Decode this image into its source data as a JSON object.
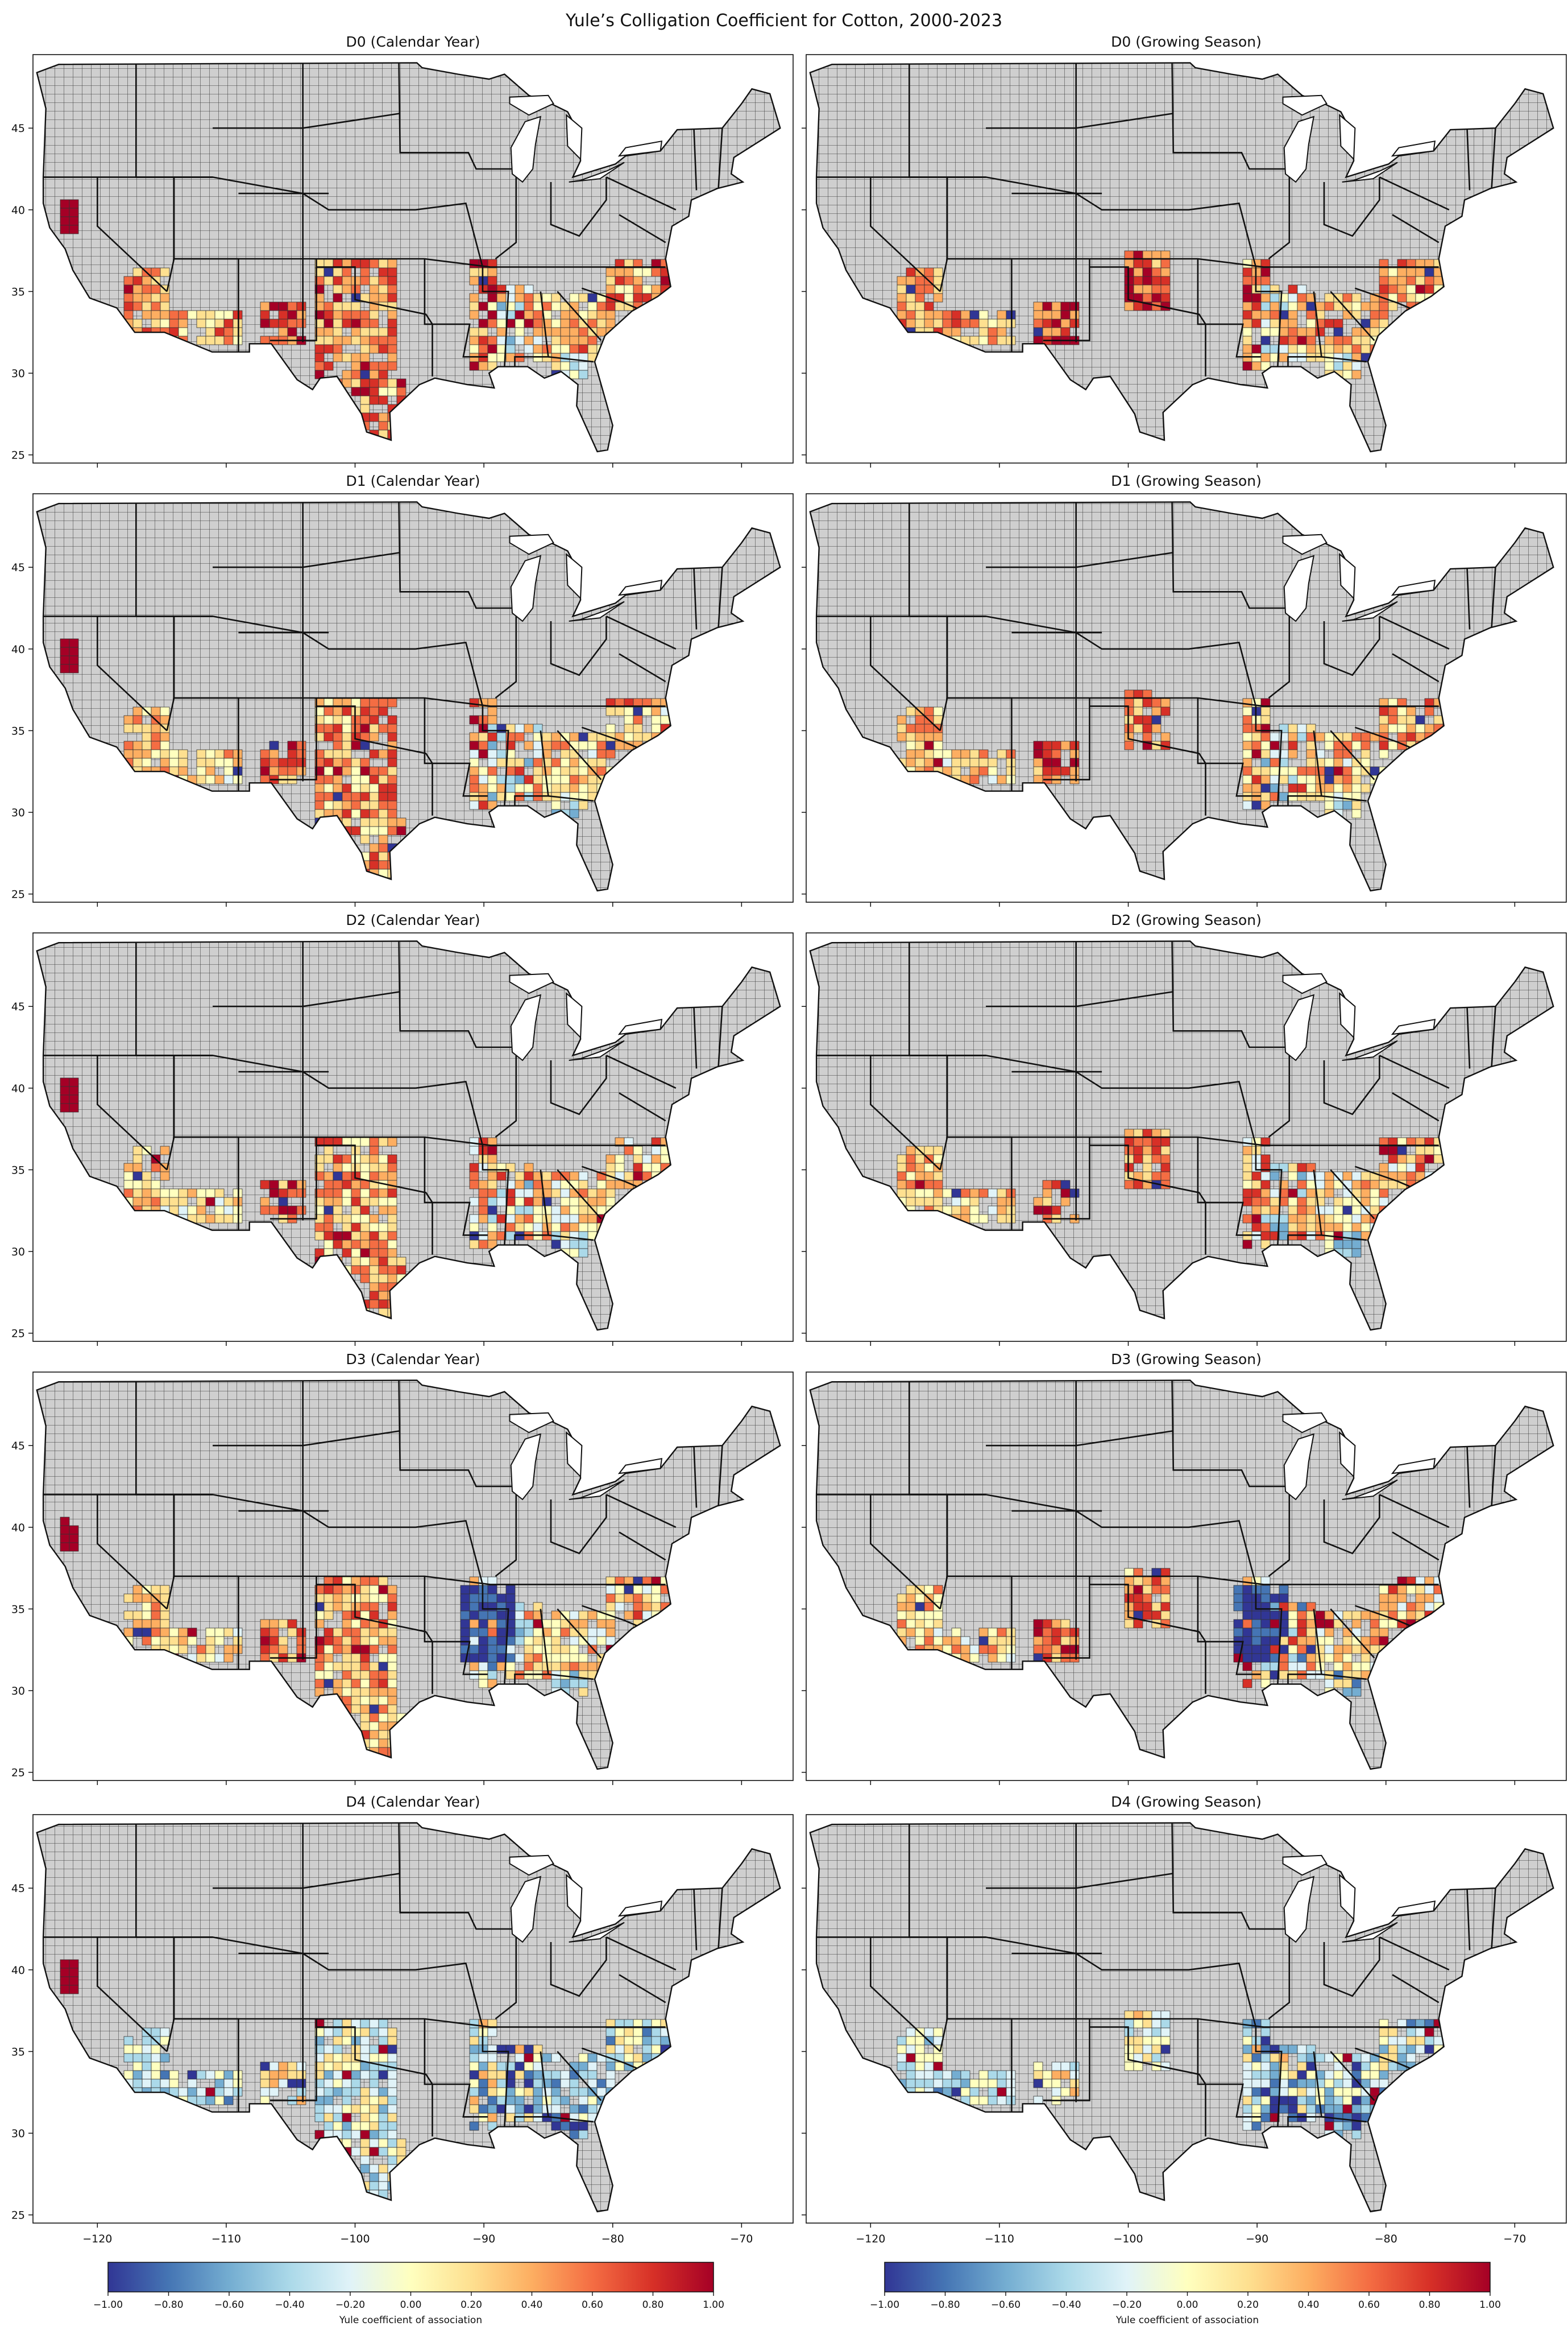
{
  "figure": {
    "title": "Yule’s Colligation Coefficient for Cotton, 2000-2023"
  },
  "chart_data": {
    "type": "map",
    "panels": [
      {
        "title": "D0 (Calendar Year)",
        "drought_level": "D0",
        "period": "Calendar Year"
      },
      {
        "title": "D0 (Growing Season)",
        "drought_level": "D0",
        "period": "Growing Season"
      },
      {
        "title": "D1 (Calendar Year)",
        "drought_level": "D1",
        "period": "Calendar Year"
      },
      {
        "title": "D1 (Growing Season)",
        "drought_level": "D1",
        "period": "Growing Season"
      },
      {
        "title": "D2 (Calendar Year)",
        "drought_level": "D2",
        "period": "Calendar Year"
      },
      {
        "title": "D2 (Growing Season)",
        "drought_level": "D2",
        "period": "Growing Season"
      },
      {
        "title": "D3 (Calendar Year)",
        "drought_level": "D3",
        "period": "Calendar Year"
      },
      {
        "title": "D3 (Growing Season)",
        "drought_level": "D3",
        "period": "Growing Season"
      },
      {
        "title": "D4 (Calendar Year)",
        "drought_level": "D4",
        "period": "Calendar Year"
      },
      {
        "title": "D4 (Growing Season)",
        "drought_level": "D4",
        "period": "Growing Season"
      }
    ],
    "lat_ticks": [
      "25",
      "30",
      "35",
      "40",
      "45"
    ],
    "lon_ticks": [
      "−120",
      "−110",
      "−100",
      "−90",
      "−80",
      "−70"
    ],
    "xlim": [
      -125,
      -66
    ],
    "ylim": [
      24.5,
      49.5
    ],
    "colorbar": {
      "label": "Yule coefficient of association",
      "ticks": [
        "−1.00",
        "−0.80",
        "−0.60",
        "−0.40",
        "−0.20",
        "0.00",
        "0.20",
        "0.40",
        "0.60",
        "0.80",
        "1.00"
      ],
      "range": [
        -1,
        1
      ],
      "colormap": "RdYlBu_r"
    },
    "colors": {
      "no_data": "#d3d3d3",
      "scale": [
        "#313695",
        "#4575b4",
        "#74add1",
        "#abd9e9",
        "#e0f3f8",
        "#ffffbf",
        "#fee090",
        "#fdae61",
        "#f46d43",
        "#d73027",
        "#a50026"
      ]
    }
  }
}
